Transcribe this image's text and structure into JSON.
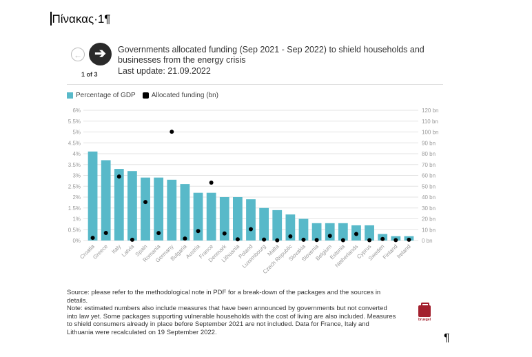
{
  "document": {
    "heading": "Πίνακας·1¶",
    "trailing_mark": "¶"
  },
  "navigation": {
    "prev_icon": "arrow-left-icon",
    "next_icon": "arrow-right-icon",
    "page_indicator": "1 of 3"
  },
  "header": {
    "title": "Governments allocated funding (Sep 2021 - Sep 2022) to shield households and businesses from the energy crisis",
    "subtitle": "Last update: 21.09.2022"
  },
  "legend": {
    "bar_label": "Percentage of GDP",
    "dot_label": "Allocated funding (bn)"
  },
  "source": {
    "text": "Source: please refer to the methodological note in PDF for a break-down of the packages and the sources in details.",
    "note": "Note: estimated numbers also include measures that have been announced by governments but not converted into law yet. Some packages supporting vulnerable households with the cost of living are also included. Measures to shield consumers already in place before September 2021 are not included. Data for France, Italy and Lithuania were recalculated on 19 September 2022."
  },
  "logo": {
    "text": "bruegel"
  },
  "colors": {
    "bar": "#58b9c9",
    "dot": "#000000",
    "grid": "#e3e3e3",
    "axis_text": "#999999"
  },
  "chart_data": {
    "type": "bar",
    "categories": [
      "Croatia",
      "Greece",
      "Italy",
      "Latvia",
      "Spain",
      "Romania",
      "Germany",
      "Bulgaria",
      "Austria",
      "France",
      "Denmark",
      "Lithuania",
      "Poland",
      "Luxembourg",
      "Malta",
      "Czech Republic",
      "Slovakia",
      "Slovenia",
      "Belgium",
      "Estonia",
      "Netherlands",
      "Cyprus",
      "Sweden",
      "Finland",
      "Ireland"
    ],
    "series": [
      {
        "name": "Percentage of GDP",
        "type": "bar",
        "axis": "left",
        "values": [
          4.1,
          3.7,
          3.3,
          3.2,
          2.9,
          2.9,
          2.8,
          2.6,
          2.2,
          2.2,
          2.0,
          2.0,
          1.9,
          1.5,
          1.4,
          1.2,
          1.0,
          0.8,
          0.8,
          0.8,
          0.7,
          0.7,
          0.3,
          0.2,
          0.2
        ]
      },
      {
        "name": "Allocated funding (bn)",
        "type": "scatter",
        "axis": "right",
        "values": [
          2.5,
          7.0,
          59.0,
          0.7,
          35.5,
          6.9,
          100.2,
          1.8,
          8.7,
          53.3,
          6.5,
          1.1,
          10.5,
          0.9,
          0.2,
          3.8,
          0.7,
          0.5,
          4.3,
          0.3,
          6.0,
          0.3,
          1.4,
          0.4,
          0.7
        ]
      }
    ],
    "left_axis": {
      "ticks": [
        "0%",
        "0.5%",
        "1%",
        "1.5%",
        "2%",
        "2.5%",
        "3%",
        "3.5%",
        "4%",
        "4.5%",
        "5%",
        "5.5%",
        "6%"
      ],
      "ylim": [
        0,
        6
      ]
    },
    "right_axis": {
      "ticks": [
        "0 bn",
        "10 bn",
        "20 bn",
        "30 bn",
        "40 bn",
        "50 bn",
        "60 bn",
        "70 bn",
        "80 bn",
        "90 bn",
        "100 bn",
        "110 bn",
        "120 bn"
      ],
      "ylim": [
        0,
        120
      ]
    },
    "grid": true,
    "legend_position": "top-left"
  }
}
